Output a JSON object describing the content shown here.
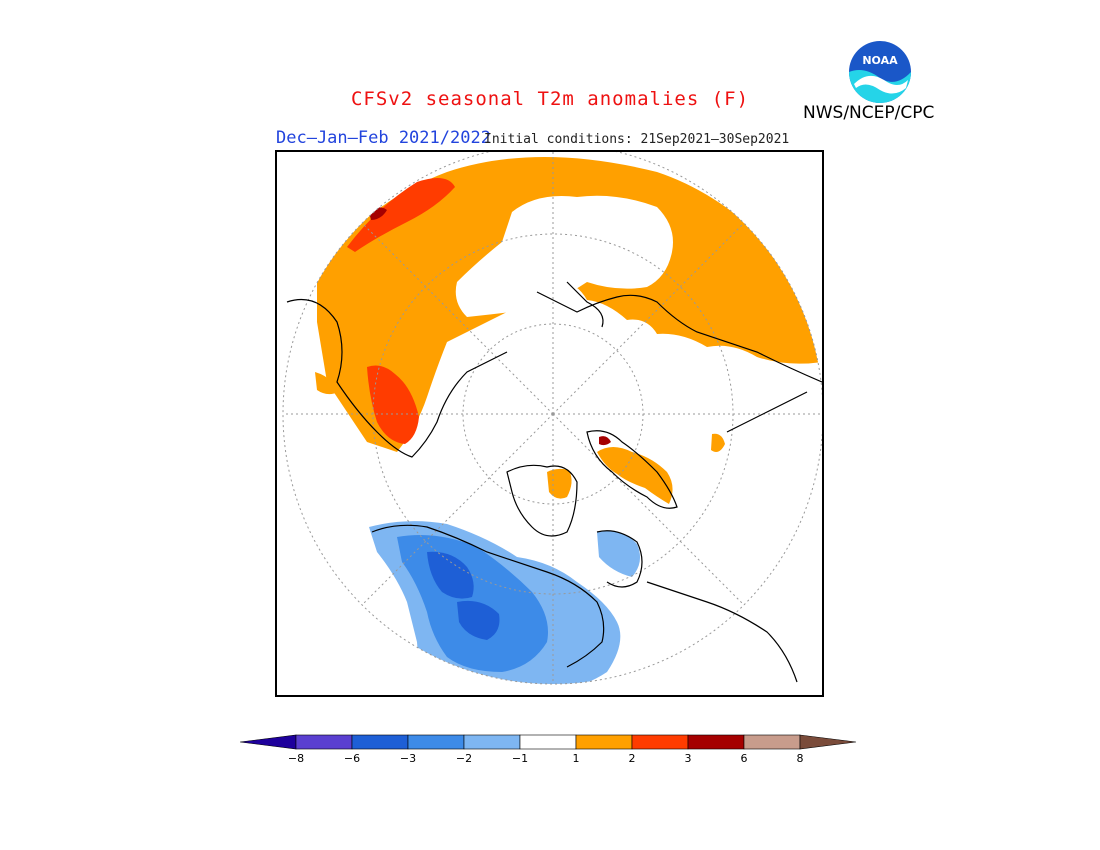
{
  "title": "CFSv2 seasonal T2m anomalies (F)",
  "subtitle": "Dec–Jan–Feb 2021/2022",
  "initial_conditions": "Initial conditions: 21Sep2021–30Sep2021",
  "organization": "NWS/NCEP/CPC",
  "logo_text": "NOAA",
  "colors": {
    "title": "#ee1111",
    "subtitle": "#2244dd",
    "bins": [
      "#1e009c",
      "#5a3fd0",
      "#1e5fd6",
      "#3d8be8",
      "#7eb6f2",
      "#ffffff",
      "#ffa000",
      "#ff3c00",
      "#a50000",
      "#c89c8c",
      "#7a4b3a"
    ]
  },
  "colorbar": {
    "tick_labels": [
      "−8",
      "−6",
      "−3",
      "−2",
      "−1",
      "1",
      "2",
      "3",
      "6",
      "8"
    ]
  }
}
